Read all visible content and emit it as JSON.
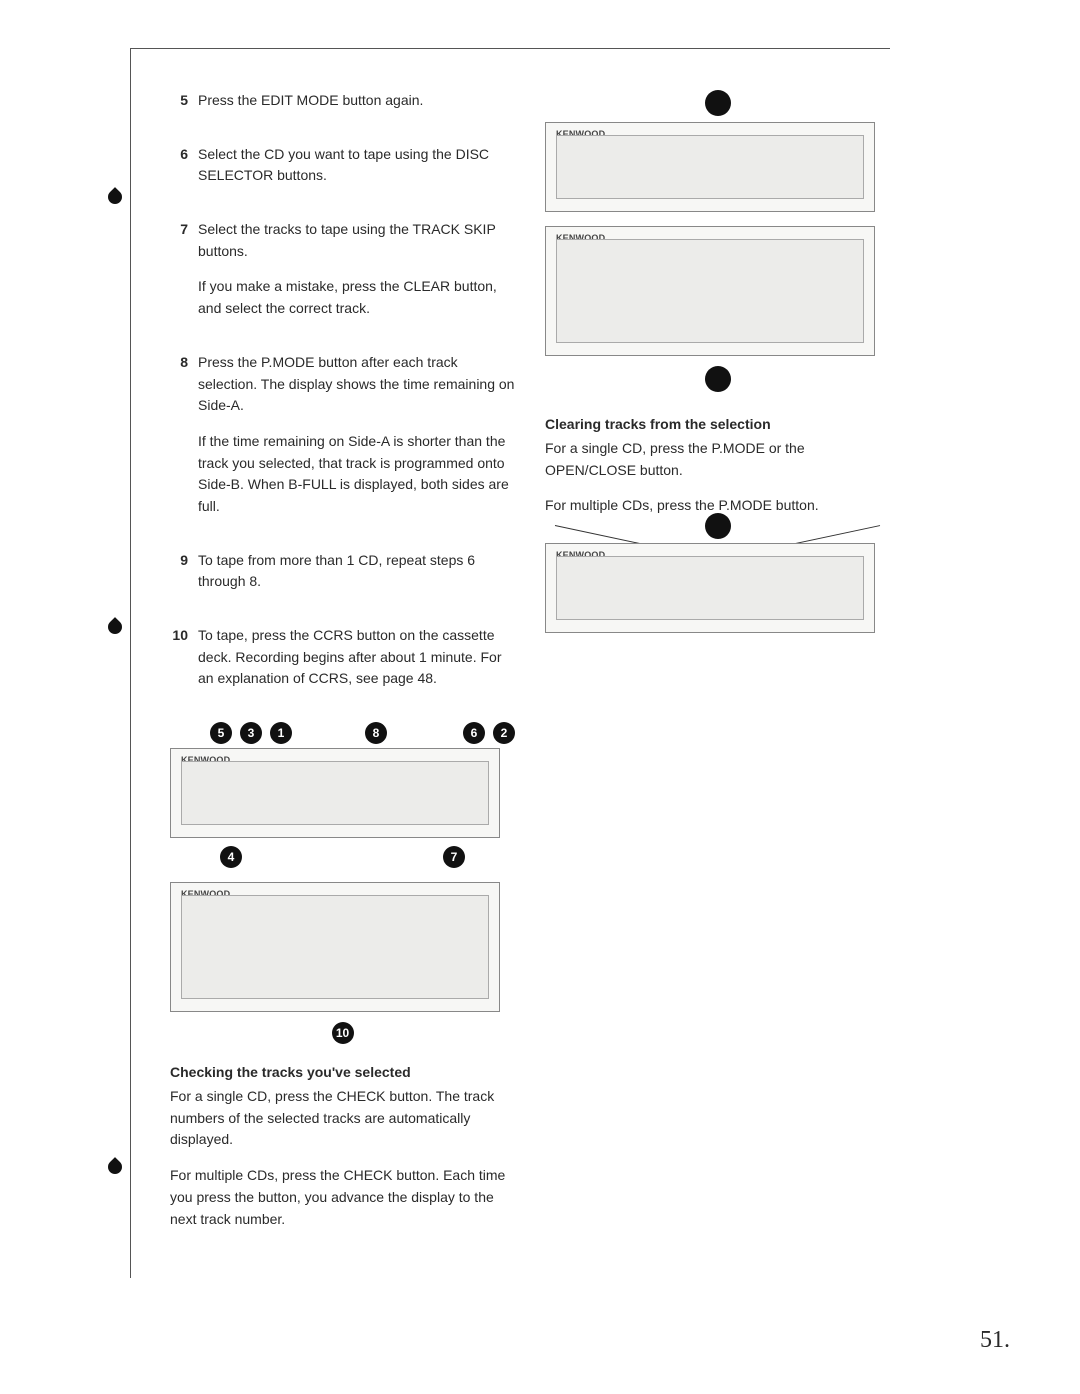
{
  "left": {
    "steps": [
      {
        "n": "5",
        "paras": [
          "Press the EDIT MODE button again."
        ]
      },
      {
        "n": "6",
        "paras": [
          "Select the CD you want to tape using the DISC SELECTOR buttons."
        ]
      },
      {
        "n": "7",
        "paras": [
          "Select the tracks to tape using the TRACK SKIP buttons.",
          "If you make a mistake, press the CLEAR button, and select the correct track."
        ]
      },
      {
        "n": "8",
        "paras": [
          "Press the P.MODE button after each track selection. The display shows the time remaining on Side-A.",
          "If the time remaining on Side-A is shorter than the track you selected, that track is programmed onto Side-B. When B-FULL is displayed, both sides are full."
        ]
      },
      {
        "n": "9",
        "paras": [
          "To tape from more than 1 CD, repeat steps 6 through 8."
        ]
      },
      {
        "n": "10",
        "paras": [
          "To tape, press the CCRS button on the cassette deck. Recording begins after about 1 minute. For an explanation of CCRS, see page 48."
        ]
      }
    ],
    "calloutsTop": [
      "5",
      "3",
      "1",
      "8",
      "6",
      "2"
    ],
    "calloutsBottom": [
      "4",
      "7"
    ],
    "calloutTape": "10",
    "deviceLabel": "KENWOOD",
    "checkTitle": "Checking the tracks you've selected",
    "checkP1": "For a single CD, press the CHECK button. The track numbers of the selected tracks are automatically displayed.",
    "checkP2": "For multiple CDs, press the CHECK button. Each time you press the button, you advance the display to the next track number."
  },
  "right": {
    "deviceLabel": "KENWOOD",
    "clearTitle": "Clearing tracks from the selection",
    "clearP1": "For a single CD, press the P.MODE or the OPEN/CLOSE button.",
    "clearP2": "For multiple CDs, press the P.MODE button."
  },
  "pageNumber": "51."
}
